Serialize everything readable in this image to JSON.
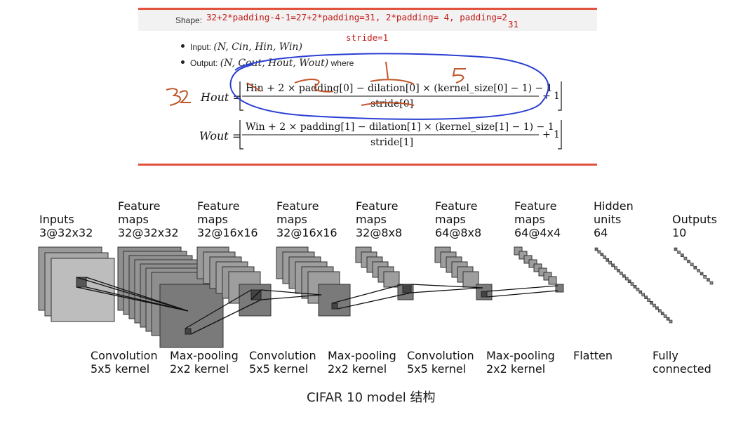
{
  "doc": {
    "shape_label": "Shape:",
    "input_bullet": "Input: (N, C_in, H_in, W_in)",
    "output_bullet": "Output: (N, C_out, H_out, W_out) where",
    "input_prefix": "Input:",
    "input_math": "(N, Cin, Hin, Win)",
    "output_prefix": "Output:",
    "output_math": "(N, Cout, Hout, Wout)",
    "output_suffix": "where",
    "h_formula_lhs": "Hout =",
    "h_formula_num": "Hin + 2 × padding[0] − dilation[0] × (kernel_size[0] − 1) − 1",
    "h_formula_den": "stride[0]",
    "h_formula_plus": "+ 1",
    "w_formula_lhs": "Wout =",
    "w_formula_num": "Win + 2 × padding[1] − dilation[1] × (kernel_size[1] − 1) − 1",
    "w_formula_den": "stride[1]",
    "w_formula_plus": "+ 1"
  },
  "annotations": {
    "equation": "32+2*padding-4-1=27+2*padding=31, 2*padding= 4, padding=2",
    "value_31": "31",
    "stride": "stride=1",
    "hand_32": "32",
    "hand_1": "1",
    "hand_5": "5",
    "hand_2": "2",
    "color_red": "#c41a1a",
    "color_blue": "#2a3fd1",
    "color_brown": "#c0552a"
  },
  "diagram": {
    "layers": [
      {
        "line1": "Inputs",
        "line2": "3@32x32"
      },
      {
        "line1": "Feature",
        "line2": "maps",
        "line3": "32@32x32"
      },
      {
        "line1": "Feature",
        "line2": "maps",
        "line3": "32@16x16"
      },
      {
        "line1": "Feature",
        "line2": "maps",
        "line3": "32@16x16"
      },
      {
        "line1": "Feature",
        "line2": "maps",
        "line3": "32@8x8"
      },
      {
        "line1": "Feature",
        "line2": "maps",
        "line3": "64@8x8"
      },
      {
        "line1": "Feature",
        "line2": "maps",
        "line3": "64@4x4"
      },
      {
        "line1": "Hidden",
        "line2": "units",
        "line3": "64"
      },
      {
        "line1": "Outputs",
        "line2": "10"
      }
    ],
    "operations": [
      {
        "line1": "Convolution",
        "line2": "5x5 kernel"
      },
      {
        "line1": "Max-pooling",
        "line2": "2x2 kernel"
      },
      {
        "line1": "Convolution",
        "line2": "5x5 kernel"
      },
      {
        "line1": "Max-pooling",
        "line2": "2x2 kernel"
      },
      {
        "line1": "Convolution",
        "line2": "5x5 kernel"
      },
      {
        "line1": "Max-pooling",
        "line2": "2x2 kernel"
      },
      {
        "line1": "Flatten"
      },
      {
        "line1": "Fully",
        "line2": "connected"
      }
    ],
    "caption": "CIFAR 10 model 结构"
  }
}
